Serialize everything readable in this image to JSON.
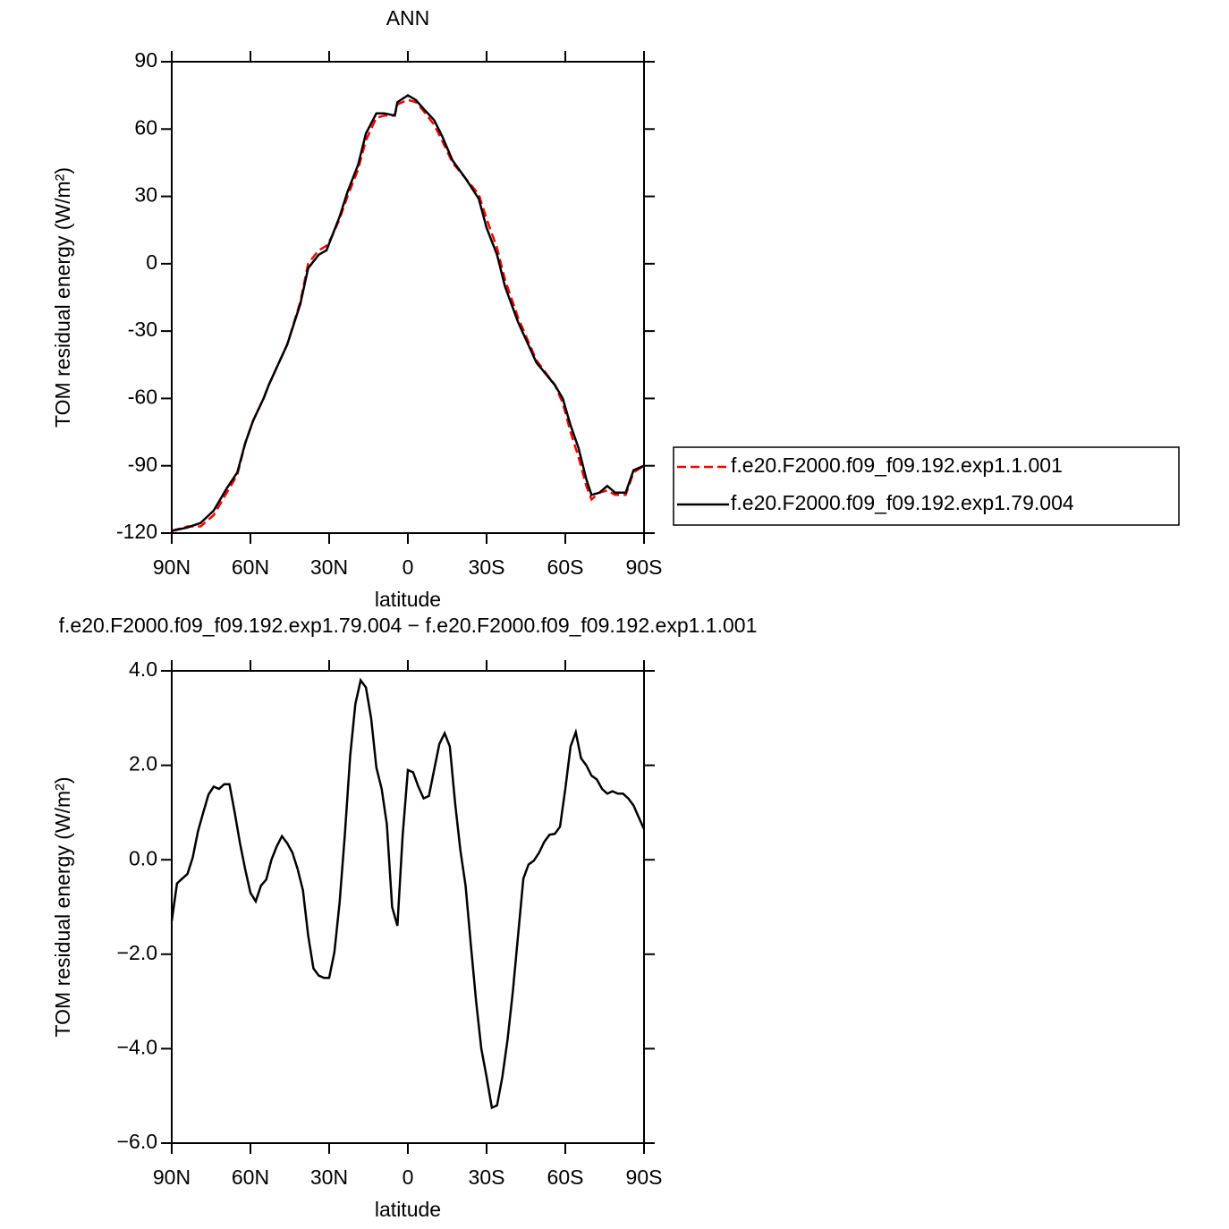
{
  "chart_data": [
    {
      "type": "line",
      "title": "ANN",
      "xlabel": "latitude",
      "ylabel": "TOM residual energy (W/m²)",
      "x": [
        90,
        84,
        79,
        74,
        69,
        65,
        62,
        59,
        55,
        53,
        46,
        41,
        38,
        34,
        31,
        29,
        26,
        23,
        19,
        16,
        12,
        9,
        5,
        4,
        0,
        -3,
        -6,
        -10,
        -13,
        -17,
        -22,
        -27,
        -30,
        -34,
        -37,
        -42,
        -49,
        -56,
        -59,
        -62,
        -65,
        -68,
        -70,
        -73,
        -76,
        -79,
        -83,
        -86,
        -90
      ],
      "series": [
        {
          "name": "f.e20.F2000.f09_f09.192.exp1.1.001",
          "color": "#ff0000",
          "line_style": "dashed",
          "values": [
            -119,
            -117,
            -117,
            -112,
            -102,
            -94,
            -80,
            -70,
            -60,
            -54,
            -36,
            -17,
            0,
            6,
            8,
            12,
            20,
            30,
            42,
            55,
            65,
            66,
            66,
            71,
            73,
            72,
            68,
            62,
            55,
            45,
            38,
            31,
            20,
            7,
            -7,
            -24,
            -43,
            -54,
            -62,
            -75,
            -86,
            -99,
            -105,
            -102,
            -101,
            -103,
            -103,
            -93,
            -90
          ]
        },
        {
          "name": "f.e20.F2000.f09_f09.192.exp1.79.004",
          "color": "#000000",
          "line_style": "solid",
          "values": [
            -119,
            -117.5,
            -115.5,
            -110,
            -100,
            -93,
            -80,
            -70,
            -60,
            -54,
            -36,
            -18,
            -2,
            4,
            6,
            12,
            21,
            32,
            44,
            58,
            67,
            67,
            66,
            72,
            75,
            73,
            69,
            64,
            57,
            46,
            38,
            29,
            16,
            4,
            -10,
            -26,
            -44,
            -54,
            -60,
            -72,
            -82,
            -96,
            -103,
            -102,
            -99,
            -102,
            -102,
            -92,
            -90
          ]
        }
      ],
      "xlim": [
        90,
        -90
      ],
      "xticks": [
        {
          "value": 90,
          "label": "90N"
        },
        {
          "value": 60,
          "label": "60N"
        },
        {
          "value": 30,
          "label": "30N"
        },
        0,
        {
          "value": -30,
          "label": "30S"
        },
        {
          "value": -60,
          "label": "60S"
        },
        {
          "value": -90,
          "label": "90S"
        }
      ],
      "ylim": [
        -120,
        90
      ],
      "yticks": [
        -120,
        -90,
        -60,
        -30,
        0,
        30,
        60,
        90
      ],
      "legend": "right"
    },
    {
      "type": "line",
      "title": "f.e20.F2000.f09_f09.192.exp1.79.004 − f.e20.F2000.f09_f09.192.exp1.1.001",
      "xlabel": "latitude",
      "ylabel": "TOM residual energy (W/m²)",
      "x": [
        90,
        88,
        86,
        84,
        82,
        80,
        78,
        76,
        74,
        72,
        70,
        68,
        66,
        64,
        62,
        60,
        58,
        56,
        54,
        52,
        50,
        48,
        46,
        44,
        42,
        40,
        38,
        36,
        34,
        32,
        30,
        28,
        26,
        24,
        22,
        20,
        18,
        16,
        14,
        12,
        10,
        8,
        6,
        4,
        2,
        0,
        -2,
        -4,
        -6,
        -8,
        -10,
        -12,
        -14,
        -16,
        -18,
        -20,
        -22,
        -24,
        -26,
        -28,
        -30,
        -32,
        -34,
        -36,
        -38,
        -40,
        -42,
        -44,
        -46,
        -48,
        -50,
        -52,
        -54,
        -56,
        -58,
        -60,
        -62,
        -64,
        -66,
        -68,
        -70,
        -72,
        -74,
        -76,
        -78,
        -80,
        -82,
        -84,
        -86,
        -88,
        -90
      ],
      "series": [
        {
          "color": "#000000",
          "line_style": "solid",
          "values": [
            -1.3,
            -0.5,
            -0.4,
            -0.3,
            0.05,
            0.6,
            1.0,
            1.38,
            1.55,
            1.5,
            1.6,
            1.6,
            1.0,
            0.35,
            -0.2,
            -0.7,
            -0.88,
            -0.55,
            -0.42,
            0.0,
            0.28,
            0.5,
            0.35,
            0.15,
            -0.2,
            -0.65,
            -1.6,
            -2.3,
            -2.45,
            -2.5,
            -2.5,
            -1.95,
            -0.9,
            0.55,
            2.2,
            3.3,
            3.8,
            3.65,
            3.0,
            1.95,
            1.5,
            0.75,
            -1.0,
            -1.4,
            0.5,
            1.9,
            1.85,
            1.55,
            1.3,
            1.35,
            1.9,
            2.45,
            2.68,
            2.4,
            1.2,
            0.2,
            -0.55,
            -1.8,
            -3.0,
            -4.0,
            -4.6,
            -5.25,
            -5.2,
            -4.6,
            -3.8,
            -2.8,
            -1.6,
            -0.4,
            -0.1,
            -0.02,
            0.15,
            0.38,
            0.53,
            0.55,
            0.7,
            1.5,
            2.4,
            2.7,
            2.15,
            2.0,
            1.78,
            1.7,
            1.5,
            1.4,
            1.45,
            1.4,
            1.4,
            1.3,
            1.15,
            0.9,
            0.65
          ]
        }
      ],
      "xlim": [
        90,
        -90
      ],
      "xticks": [
        {
          "value": 90,
          "label": "90N"
        },
        {
          "value": 60,
          "label": "60N"
        },
        {
          "value": 30,
          "label": "30N"
        },
        0,
        {
          "value": -30,
          "label": "30S"
        },
        {
          "value": -60,
          "label": "60S"
        },
        {
          "value": -90,
          "label": "90S"
        }
      ],
      "ylim": [
        -6,
        4
      ],
      "yticks": [
        {
          "value": -6,
          "label": "−6.0"
        },
        {
          "value": -4,
          "label": "−4.0"
        },
        {
          "value": -2,
          "label": "−2.0"
        },
        {
          "value": 0,
          "label": "0.0"
        },
        {
          "value": 2,
          "label": "2.0"
        },
        {
          "value": 4,
          "label": "4.0"
        }
      ]
    }
  ]
}
